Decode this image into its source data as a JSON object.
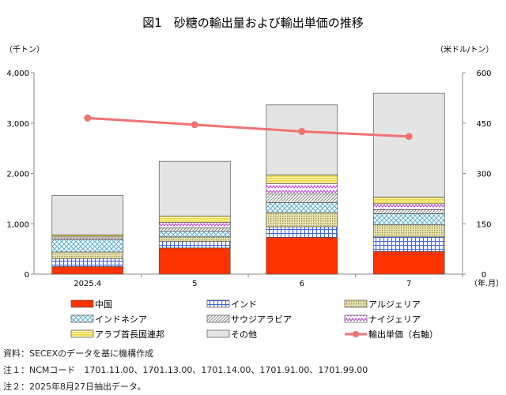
{
  "chart_data": {
    "type": "bar",
    "title": "図1　砂糖の輸出量および輸出単価の推移",
    "left_unit": "（千トン）",
    "right_unit": "（米ドル/トン）",
    "x_unit": "（年.月）",
    "categories": [
      "2025.4",
      "5",
      "6",
      "7"
    ],
    "ylim": [
      0,
      4000
    ],
    "y_ticks": [
      "0",
      "1,000",
      "2,000",
      "3,000",
      "4,000"
    ],
    "y2lim": [
      0,
      600
    ],
    "y2_ticks": [
      "0",
      "150",
      "300",
      "450",
      "600"
    ],
    "grid": false,
    "legend_position": "bottom",
    "stacked": true,
    "series": [
      {
        "name": "中国",
        "color": "#ff3300",
        "pattern": "solid",
        "values": [
          150,
          520,
          730,
          450
        ]
      },
      {
        "name": "インド",
        "color": "#4466dd",
        "pattern": "grid",
        "values": [
          160,
          130,
          210,
          290
        ]
      },
      {
        "name": "アルジェリア",
        "color": "#d8d08a",
        "pattern": "dots",
        "values": [
          130,
          90,
          280,
          240
        ]
      },
      {
        "name": "インドネシア",
        "color": "#5aaed0",
        "pattern": "lattice",
        "values": [
          240,
          110,
          200,
          220
        ]
      },
      {
        "name": "サウジアラビア",
        "color": "#999999",
        "pattern": "diagonal",
        "values": [
          40,
          70,
          170,
          80
        ]
      },
      {
        "name": "ナイジェリア",
        "color": "#bb44cc",
        "pattern": "zigzag",
        "values": [
          30,
          110,
          210,
          120
        ]
      },
      {
        "name": "アラブ首長国連邦",
        "color": "#f0d020",
        "pattern": "hlines",
        "values": [
          30,
          120,
          170,
          130
        ]
      },
      {
        "name": "その他",
        "color": "#e4e4e4",
        "pattern": "solid",
        "values": [
          780,
          1090,
          1390,
          2060
        ]
      }
    ],
    "line_series": {
      "name": "輸出単価（右軸）",
      "color": "#f07373",
      "values": [
        465,
        445,
        425,
        410
      ]
    }
  },
  "notes": [
    "資料：SECEXのデータを基に機構作成",
    "注１：NCMコード　1701.11.00、1701.13.00、1701.14.00、1701.91.00、1701.99.00",
    "注２：2025年8月27日抽出データ。"
  ]
}
